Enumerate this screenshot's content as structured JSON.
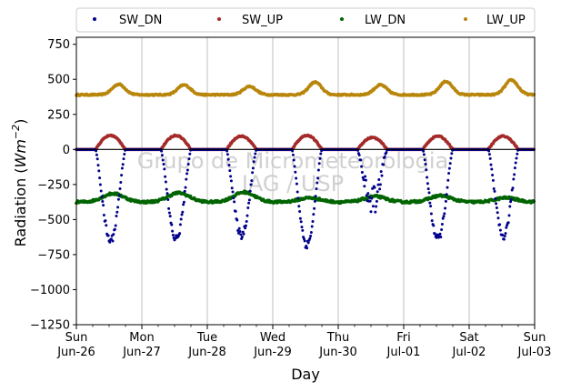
{
  "chart_data": {
    "type": "scatter",
    "title": "",
    "xlabel": "Day",
    "ylabel_main": "Radiation (",
    "ylabel_unit": "Wm",
    "ylabel_exp": "−2",
    "ylabel_close": ")",
    "ylim": [
      -1250,
      800
    ],
    "yticks": [
      750,
      500,
      250,
      0,
      -250,
      -500,
      -750,
      -1000,
      -1250
    ],
    "ytick_labels": [
      "750",
      "500",
      "250",
      "0",
      "−250",
      "−500",
      "−750",
      "−1000",
      "−1250"
    ],
    "xlim": [
      "2022-06-26 00:00",
      "2022-07-03 00:00"
    ],
    "xtick_days": [
      "Sun",
      "Mon",
      "Tue",
      "Wed",
      "Thu",
      "Fri",
      "Sat",
      "Sun"
    ],
    "xtick_dates": [
      "Jun-26",
      "Jun-27",
      "Jun-28",
      "Jun-29",
      "Jun-30",
      "Jul-01",
      "Jul-02",
      "Jul-03"
    ],
    "grid": "vertical",
    "legend_position": "top",
    "watermark_lines": [
      "Grupo de Micrometeorologia",
      "IAG / USP"
    ],
    "series": [
      {
        "name": "SW_DN",
        "color": "#00008b",
        "daily_minimum": [
          -650,
          -640,
          -610,
          -680,
          -480,
          -640,
          -620
        ],
        "night_value": 0
      },
      {
        "name": "SW_UP",
        "color": "#a52a2a",
        "daily_peak": [
          100,
          100,
          95,
          100,
          85,
          95,
          95
        ],
        "night_value": 0
      },
      {
        "name": "LW_DN",
        "color": "#006400",
        "baseline": -375,
        "daily_high": [
          -315,
          -310,
          -305,
          -345,
          -335,
          -330,
          -345
        ]
      },
      {
        "name": "LW_UP",
        "color": "#b8860b",
        "baseline": 390,
        "daily_peak": [
          465,
          460,
          450,
          480,
          460,
          485,
          495
        ]
      }
    ]
  }
}
